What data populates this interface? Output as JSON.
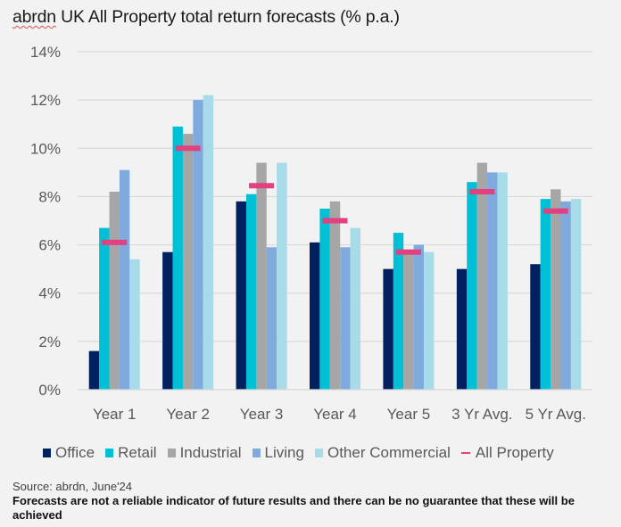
{
  "title_brand": "abrdn",
  "title_rest": " UK All Property total return forecasts (% p.a.)",
  "source": "Source: abrdn, June'24",
  "disclaimer": "Forecasts are not a reliable indicator of future results and there can be no guarantee that these will be achieved",
  "chart_data": {
    "type": "bar",
    "title": "abrdn UK All Property total return forecasts (% p.a.)",
    "xlabel": "",
    "ylabel": "",
    "ylim": [
      0,
      14
    ],
    "yticks": [
      0,
      2,
      4,
      6,
      8,
      10,
      12,
      14
    ],
    "ytick_labels": [
      "0%",
      "2%",
      "4%",
      "6%",
      "8%",
      "10%",
      "12%",
      "14%"
    ],
    "grid": true,
    "legend_position": "bottom",
    "categories": [
      "Year 1",
      "Year 2",
      "Year 3",
      "Year 4",
      "Year 5",
      "3 Yr Avg.",
      "5 Yr Avg."
    ],
    "series": [
      {
        "name": "Office",
        "color": "#002060",
        "values": [
          1.6,
          5.7,
          7.8,
          6.1,
          5.0,
          5.0,
          5.2
        ]
      },
      {
        "name": "Retail",
        "color": "#00c0d6",
        "values": [
          6.7,
          10.9,
          8.1,
          7.5,
          6.5,
          8.6,
          7.9
        ]
      },
      {
        "name": "Industrial",
        "color": "#a6a6a6",
        "values": [
          8.2,
          10.6,
          9.4,
          7.8,
          5.8,
          9.4,
          8.3
        ]
      },
      {
        "name": "Living",
        "color": "#7faade",
        "values": [
          9.1,
          12.0,
          5.9,
          5.9,
          6.0,
          9.0,
          7.8
        ]
      },
      {
        "name": "Other Commercial",
        "color": "#a8dbe8",
        "values": [
          5.4,
          12.2,
          9.4,
          6.7,
          5.7,
          9.0,
          7.9
        ]
      }
    ],
    "markers": {
      "name": "All Property",
      "color": "#e2407e",
      "values": [
        6.1,
        10.0,
        8.45,
        7.0,
        5.7,
        8.2,
        7.4
      ]
    }
  }
}
